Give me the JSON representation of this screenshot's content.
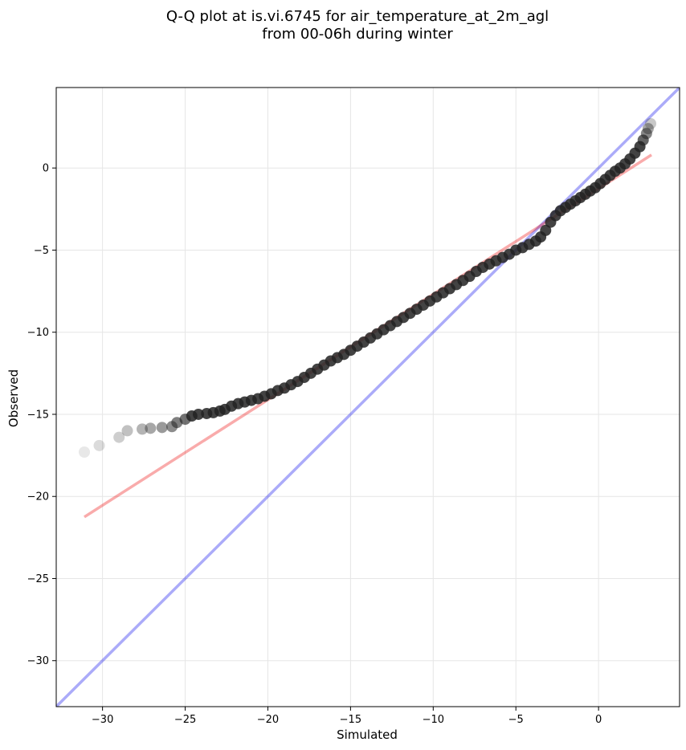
{
  "chart_data": {
    "type": "scatter",
    "title_line1": "Q-Q plot at is.vi.6745 for air_temperature_at_2m_agl",
    "title_line2": "from 00-06h during winter",
    "xlabel": "Simulated",
    "ylabel": "Observed",
    "xlim": [
      -32.8,
      4.9
    ],
    "ylim": [
      -32.8,
      4.9
    ],
    "xticks": [
      -30,
      -25,
      -20,
      -15,
      -10,
      -5,
      0
    ],
    "yticks": [
      -30,
      -25,
      -20,
      -15,
      -10,
      -5,
      0
    ],
    "xtick_labels": [
      "−30",
      "−25",
      "−20",
      "−15",
      "−10",
      "−5",
      "0"
    ],
    "ytick_labels": [
      "−30",
      "−25",
      "−20",
      "−15",
      "−10",
      "−5",
      "0"
    ],
    "grid": true,
    "points": [
      [
        -31.1,
        -17.3
      ],
      [
        -30.2,
        -16.9
      ],
      [
        -29.0,
        -16.4
      ],
      [
        -28.5,
        -16.0
      ],
      [
        -27.6,
        -15.9
      ],
      [
        -27.1,
        -15.85
      ],
      [
        -26.4,
        -15.8
      ],
      [
        -25.8,
        -15.75
      ],
      [
        -25.5,
        -15.5
      ],
      [
        -25.0,
        -15.3
      ],
      [
        -24.6,
        -15.1
      ],
      [
        -24.2,
        -15.0
      ],
      [
        -23.7,
        -14.95
      ],
      [
        -23.3,
        -14.9
      ],
      [
        -22.9,
        -14.8
      ],
      [
        -22.6,
        -14.7
      ],
      [
        -22.2,
        -14.5
      ],
      [
        -21.8,
        -14.35
      ],
      [
        -21.4,
        -14.25
      ],
      [
        -21.0,
        -14.15
      ],
      [
        -20.6,
        -14.05
      ],
      [
        -20.2,
        -13.9
      ],
      [
        -19.8,
        -13.75
      ],
      [
        -19.4,
        -13.55
      ],
      [
        -19.0,
        -13.4
      ],
      [
        -18.6,
        -13.2
      ],
      [
        -18.2,
        -13.0
      ],
      [
        -17.8,
        -12.75
      ],
      [
        -17.4,
        -12.5
      ],
      [
        -17.0,
        -12.25
      ],
      [
        -16.6,
        -12.0
      ],
      [
        -16.2,
        -11.75
      ],
      [
        -15.8,
        -11.55
      ],
      [
        -15.4,
        -11.35
      ],
      [
        -15.0,
        -11.1
      ],
      [
        -14.6,
        -10.85
      ],
      [
        -14.2,
        -10.6
      ],
      [
        -13.8,
        -10.35
      ],
      [
        -13.4,
        -10.1
      ],
      [
        -13.0,
        -9.85
      ],
      [
        -12.6,
        -9.6
      ],
      [
        -12.2,
        -9.35
      ],
      [
        -11.8,
        -9.1
      ],
      [
        -11.4,
        -8.85
      ],
      [
        -11.0,
        -8.6
      ],
      [
        -10.6,
        -8.35
      ],
      [
        -10.2,
        -8.1
      ],
      [
        -9.8,
        -7.85
      ],
      [
        -9.4,
        -7.6
      ],
      [
        -9.0,
        -7.35
      ],
      [
        -8.6,
        -7.1
      ],
      [
        -8.2,
        -6.85
      ],
      [
        -7.8,
        -6.6
      ],
      [
        -7.4,
        -6.3
      ],
      [
        -7.0,
        -6.05
      ],
      [
        -6.6,
        -5.85
      ],
      [
        -6.2,
        -5.65
      ],
      [
        -5.8,
        -5.45
      ],
      [
        -5.4,
        -5.25
      ],
      [
        -5.0,
        -5.0
      ],
      [
        -4.6,
        -4.85
      ],
      [
        -4.2,
        -4.65
      ],
      [
        -3.8,
        -4.45
      ],
      [
        -3.5,
        -4.2
      ],
      [
        -3.2,
        -3.8
      ],
      [
        -2.9,
        -3.3
      ],
      [
        -2.6,
        -2.9
      ],
      [
        -2.3,
        -2.6
      ],
      [
        -2.0,
        -2.4
      ],
      [
        -1.7,
        -2.2
      ],
      [
        -1.4,
        -2.0
      ],
      [
        -1.1,
        -1.8
      ],
      [
        -0.8,
        -1.6
      ],
      [
        -0.5,
        -1.4
      ],
      [
        -0.2,
        -1.2
      ],
      [
        0.1,
        -0.95
      ],
      [
        0.4,
        -0.7
      ],
      [
        0.7,
        -0.45
      ],
      [
        1.0,
        -0.2
      ],
      [
        1.3,
        0.0
      ],
      [
        1.6,
        0.25
      ],
      [
        1.9,
        0.55
      ],
      [
        2.2,
        0.9
      ],
      [
        2.5,
        1.3
      ],
      [
        2.7,
        1.7
      ],
      [
        2.9,
        2.1
      ],
      [
        3.0,
        2.4
      ],
      [
        3.15,
        2.7
      ]
    ],
    "reference_line": {
      "color": "#0000ee",
      "x": [
        -32.8,
        4.9
      ],
      "y": [
        -32.8,
        4.9
      ]
    },
    "fit_line": {
      "color": "#ee0000",
      "x": [
        -31.1,
        3.2
      ],
      "y": [
        -21.25,
        0.8
      ]
    },
    "point_color": "#222222"
  }
}
